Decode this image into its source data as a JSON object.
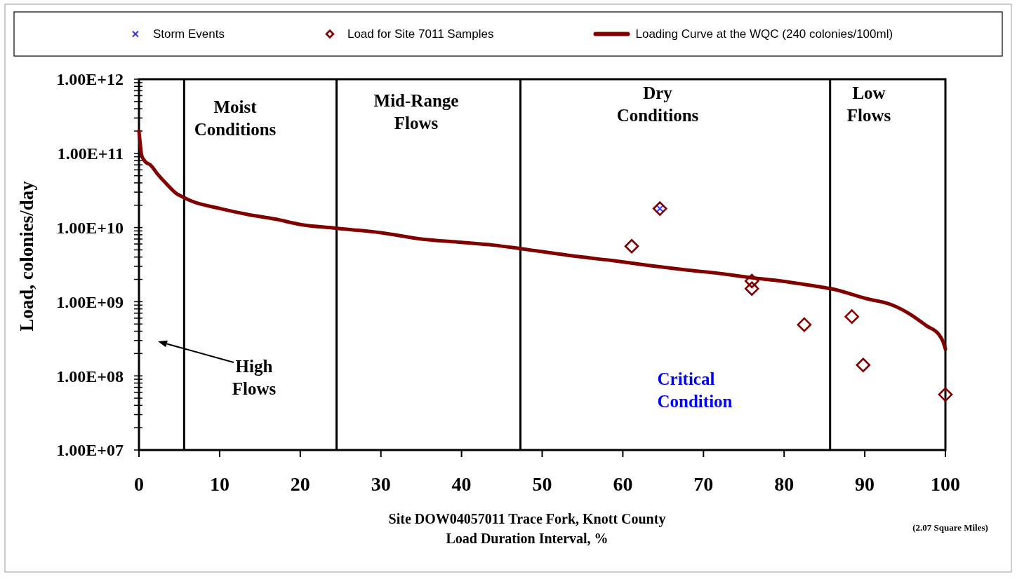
{
  "chart_data": {
    "type": "line",
    "xlabel": "Site DOW04057011  Trace Fork, Knott County\nLoad Duration Interval, %",
    "ylabel": "Load, colonies/day",
    "xlim": [
      0,
      100
    ],
    "xticks": [
      0,
      10,
      20,
      30,
      40,
      50,
      60,
      70,
      80,
      90,
      100
    ],
    "ylim": [
      10000000.0,
      1000000000000.0
    ],
    "yticks": [
      {
        "value": 10000000.0,
        "label": "1.00E+07"
      },
      {
        "value": 20000000.0,
        "label": null
      },
      {
        "value": 30000000.0,
        "label": null
      },
      {
        "value": 40000000.0,
        "label": null
      },
      {
        "value": 50000000.0,
        "label": null
      },
      {
        "value": 60000000.0,
        "label": null
      },
      {
        "value": 70000000.0,
        "label": null
      },
      {
        "value": 80000000.0,
        "label": null
      },
      {
        "value": 90000000.0,
        "label": null
      },
      {
        "value": 100000000.0,
        "label": "1.00E+08"
      },
      {
        "value": 200000000.0,
        "label": null
      },
      {
        "value": 300000000.0,
        "label": null
      },
      {
        "value": 400000000.0,
        "label": null
      },
      {
        "value": 500000000.0,
        "label": null
      },
      {
        "value": 600000000.0,
        "label": null
      },
      {
        "value": 700000000.0,
        "label": null
      },
      {
        "value": 800000000.0,
        "label": null
      },
      {
        "value": 900000000.0,
        "label": null
      },
      {
        "value": 1000000000.0,
        "label": "1.00E+09"
      },
      {
        "value": 2000000000.0,
        "label": null
      },
      {
        "value": 3000000000.0,
        "label": null
      },
      {
        "value": 4000000000.0,
        "label": null
      },
      {
        "value": 5000000000.0,
        "label": null
      },
      {
        "value": 6000000000.0,
        "label": null
      },
      {
        "value": 7000000000.0,
        "label": null
      },
      {
        "value": 8000000000.0,
        "label": null
      },
      {
        "value": 9000000000.0,
        "label": null
      },
      {
        "value": 10000000000.0,
        "label": "1.00E+10"
      },
      {
        "value": 20000000000.0,
        "label": null
      },
      {
        "value": 30000000000.0,
        "label": null
      },
      {
        "value": 40000000000.0,
        "label": null
      },
      {
        "value": 50000000000.0,
        "label": null
      },
      {
        "value": 60000000000.0,
        "label": null
      },
      {
        "value": 70000000000.0,
        "label": null
      },
      {
        "value": 80000000000.0,
        "label": null
      },
      {
        "value": 90000000000.0,
        "label": null
      },
      {
        "value": 100000000000.0,
        "label": "1.00E+11"
      },
      {
        "value": 200000000000.0,
        "label": null
      },
      {
        "value": 300000000000.0,
        "label": null
      },
      {
        "value": 400000000000.0,
        "label": null
      },
      {
        "value": 500000000000.0,
        "label": null
      },
      {
        "value": 600000000000.0,
        "label": null
      },
      {
        "value": 700000000000.0,
        "label": null
      },
      {
        "value": 800000000000.0,
        "label": null
      },
      {
        "value": 900000000000.0,
        "label": null
      },
      {
        "value": 1000000000000.0,
        "label": "1.00E+12"
      }
    ],
    "log": "y",
    "legend": "top",
    "series": [
      {
        "name": "Storm Events",
        "type": "scatter",
        "marker": "cross",
        "color": "#3333ff",
        "x": [
          64.6
        ],
        "values": [
          18000000000.0
        ]
      },
      {
        "name": "Load for Site 7011 Samples",
        "type": "scatter",
        "marker": "diamond",
        "color": "#800000",
        "x": [
          61.1,
          64.6,
          76.0,
          76.0,
          82.5,
          88.4,
          89.8,
          100
        ],
        "values": [
          5600000000.0,
          18000000000.0,
          1900000000.0,
          1500000000.0,
          490000000.0,
          630000000.0,
          140000000.0,
          56000000.0
        ]
      },
      {
        "name": "Loading Curve at the WQC (240 colonies/100ml)",
        "type": "line",
        "marker": "none",
        "color": "#800000",
        "x": [
          0,
          0.17,
          0.33,
          0.8,
          1.4,
          2.4,
          3.3,
          4.6,
          5.7,
          6.4,
          10.1,
          13.5,
          16.9,
          20,
          24.4,
          30,
          35,
          40,
          43.9,
          47.3,
          54.1,
          58.6,
          63.1,
          67.6,
          72.1,
          76,
          79.7,
          84.2,
          85.8,
          90.2,
          93.2,
          95.6,
          97.7,
          99.2,
          99.7,
          100
        ],
        "values": [
          200000000000.0,
          130000000000.0,
          94000000000.0,
          77000000000.0,
          70000000000.0,
          51000000000.0,
          40000000000.0,
          29000000000.0,
          25000000000.0,
          23000000000.0,
          18000000000.0,
          15000000000.0,
          13000000000.0,
          11000000000.0,
          9800000000.0,
          8500000000.0,
          7000000000.0,
          6300000000.0,
          5800000000.0,
          5200000000.0,
          4100000000.0,
          3600000000.0,
          3100000000.0,
          2700000000.0,
          2400000000.0,
          2100000000.0,
          1900000000.0,
          1600000000.0,
          1500000000.0,
          1100000000.0,
          920000000.0,
          680000000.0,
          470000000.0,
          360000000.0,
          290000000.0,
          230000000.0
        ]
      }
    ],
    "ref_lines": [
      {
        "axis": "x",
        "value": 5.6,
        "color": "#000000"
      },
      {
        "axis": "x",
        "value": 24.5,
        "color": "#000000"
      },
      {
        "axis": "x",
        "value": 47.3,
        "color": "#000000"
      },
      {
        "axis": "x",
        "value": 85.7,
        "color": "#000000"
      }
    ],
    "annotations": [
      "Moist Conditions",
      "Mid-Range Flows",
      "Dry Conditions",
      "Low Flows",
      "High Flows",
      "Critical Condition",
      "(2.07 Square Miles)"
    ]
  }
}
